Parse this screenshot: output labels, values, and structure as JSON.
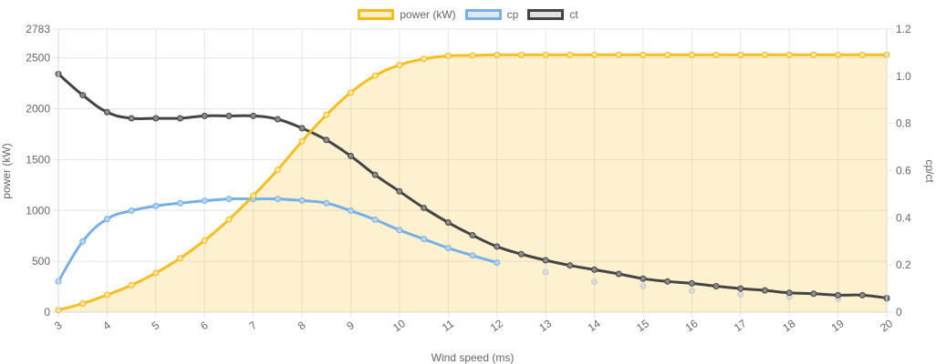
{
  "colors": {
    "power": "#f6bb16",
    "power_fill": "rgba(246,187,22,0.2)",
    "cp": "#76b0e6",
    "ct": "#444444",
    "grid": "#e6e6e6",
    "tick_text": "#666666"
  },
  "legend": [
    {
      "label": "power (kW)",
      "color": "#f6bb16",
      "fill": "#fceecb"
    },
    {
      "label": "cp",
      "color": "#76b0e6",
      "fill": "#dde9f5"
    },
    {
      "label": "ct",
      "color": "#444444",
      "fill": "#e0e0e0"
    }
  ],
  "chart_data": {
    "type": "line",
    "xlabel": "Wind speed (ms)",
    "ylabel_left": "power (kW)",
    "ylabel_right": "cp/ct",
    "xlim": [
      3,
      20
    ],
    "ylim_left": [
      0,
      2783
    ],
    "ylim_right": [
      0,
      1.2
    ],
    "x_ticks": [
      3,
      4,
      5,
      6,
      7,
      8,
      9,
      10,
      11,
      12,
      13,
      14,
      15,
      16,
      17,
      18,
      19,
      20
    ],
    "y_left_ticks": [
      0,
      500,
      1000,
      1500,
      2000,
      2500,
      2783
    ],
    "y_right_ticks": [
      0,
      0.2,
      0.4,
      0.6,
      0.8,
      1.0,
      1.2
    ],
    "y_right_tick_labels": [
      "0",
      "0.2",
      "0.4",
      "0.6",
      "0.8",
      "1.0",
      "1.2"
    ],
    "grid": true,
    "legend_position": "top-center",
    "series": [
      {
        "name": "power (kW)",
        "axis": "left",
        "filled": true,
        "x": [
          3,
          3.5,
          4,
          4.5,
          5,
          5.5,
          6,
          6.5,
          7,
          7.5,
          8,
          8.5,
          9,
          9.5,
          10,
          10.5,
          11,
          11.5,
          12,
          12.5,
          13,
          13.5,
          14,
          14.5,
          15,
          15.5,
          16,
          16.5,
          17,
          17.5,
          18,
          18.5,
          19,
          19.5,
          20
        ],
        "y": [
          20,
          85,
          170,
          265,
          385,
          530,
          705,
          910,
          1145,
          1400,
          1680,
          1940,
          2160,
          2325,
          2430,
          2490,
          2520,
          2525,
          2530,
          2530,
          2530,
          2530,
          2530,
          2530,
          2530,
          2530,
          2530,
          2530,
          2530,
          2530,
          2530,
          2530,
          2530,
          2530,
          2530
        ]
      },
      {
        "name": "cp",
        "axis": "right",
        "x": [
          3,
          3.5,
          4,
          4.5,
          5,
          5.5,
          6,
          6.5,
          7,
          7.5,
          8,
          8.5,
          9,
          9.5,
          10,
          10.5,
          11,
          11.5,
          12
        ],
        "y": [
          0.13,
          0.3,
          0.395,
          0.43,
          0.45,
          0.462,
          0.472,
          0.48,
          0.48,
          0.48,
          0.473,
          0.462,
          0.43,
          0.392,
          0.348,
          0.31,
          0.272,
          0.24,
          0.21
        ]
      },
      {
        "name": "cp (faded)",
        "axis": "right",
        "x": [
          13,
          14,
          15,
          16,
          17,
          18,
          19,
          20
        ],
        "y": [
          0.17,
          0.128,
          0.11,
          0.09,
          0.075,
          0.065,
          0.058,
          0.055
        ]
      },
      {
        "name": "ct",
        "axis": "right",
        "x": [
          3,
          3.5,
          4,
          4.5,
          5,
          5.5,
          6,
          6.5,
          7,
          7.5,
          8,
          8.5,
          9,
          9.5,
          10,
          10.5,
          11,
          11.5,
          12,
          12.5,
          13,
          13.5,
          14,
          14.5,
          15,
          15.5,
          16,
          16.5,
          17,
          17.5,
          18,
          18.5,
          19,
          19.5,
          20
        ],
        "y": [
          1.01,
          0.92,
          0.848,
          0.822,
          0.822,
          0.822,
          0.832,
          0.832,
          0.832,
          0.818,
          0.78,
          0.73,
          0.662,
          0.582,
          0.512,
          0.442,
          0.38,
          0.326,
          0.278,
          0.246,
          0.22,
          0.198,
          0.18,
          0.162,
          0.142,
          0.13,
          0.122,
          0.11,
          0.1,
          0.092,
          0.082,
          0.078,
          0.072,
          0.072,
          0.06
        ]
      }
    ]
  }
}
